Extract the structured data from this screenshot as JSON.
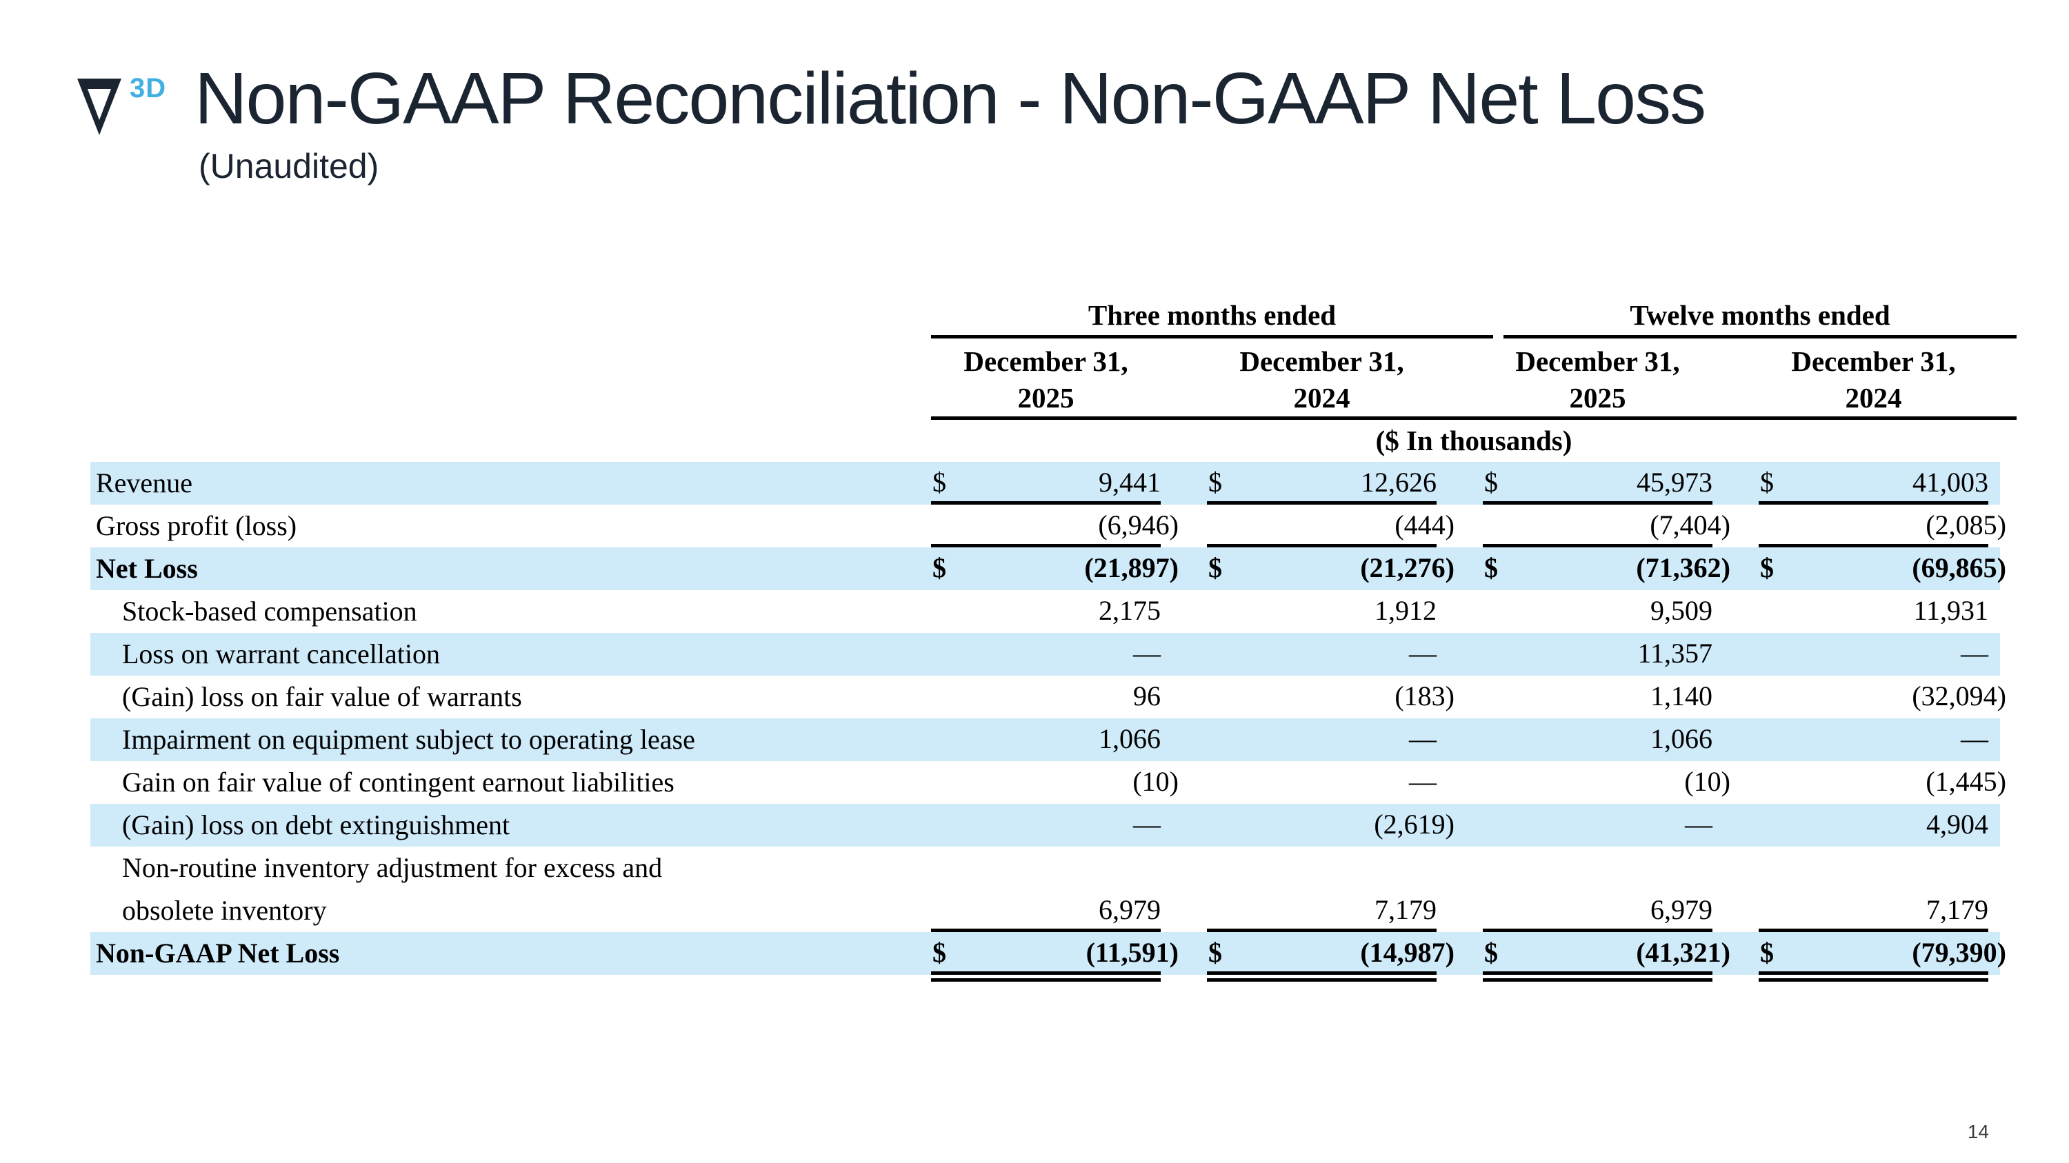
{
  "slide": {
    "logo": {
      "sup": "3D"
    },
    "title": "Non-GAAP Reconciliation - Non-GAAP Net Loss",
    "subtitle": "(Unaudited)",
    "page_number": "14",
    "colors": {
      "title_text": "#1b2531",
      "logo_accent": "#41b0e1",
      "row_highlight": "#cfeaf9",
      "rule": "#000000"
    }
  },
  "table": {
    "group_headers": [
      {
        "label": "Three months ended",
        "span": 2
      },
      {
        "label": "Twelve months ended",
        "span": 2
      }
    ],
    "columns": [
      {
        "line1": "December 31,",
        "line2": "2025"
      },
      {
        "line1": "December 31,",
        "line2": "2024"
      },
      {
        "line1": "December 31,",
        "line2": "2025"
      },
      {
        "line1": "December 31,",
        "line2": "2024"
      }
    ],
    "unit_note": "($ In thousands)",
    "rows": [
      {
        "label": "Revenue",
        "indent": false,
        "bold": false,
        "shaded": true,
        "dollar": true,
        "underline_below": true,
        "double_underline_below": false,
        "two_line": false,
        "values": [
          "9,441",
          "12,626",
          "45,973",
          "41,003"
        ]
      },
      {
        "label": "Gross profit (loss)",
        "indent": false,
        "bold": false,
        "shaded": false,
        "dollar": false,
        "underline_below": true,
        "double_underline_below": false,
        "two_line": false,
        "values": [
          "(6,946)",
          "(444)",
          "(7,404)",
          "(2,085)"
        ]
      },
      {
        "label": "Net Loss",
        "indent": false,
        "bold": true,
        "shaded": true,
        "dollar": true,
        "underline_below": false,
        "double_underline_below": false,
        "two_line": false,
        "values": [
          "(21,897)",
          "(21,276)",
          "(71,362)",
          "(69,865)"
        ]
      },
      {
        "label": "Stock-based compensation",
        "indent": true,
        "bold": false,
        "shaded": false,
        "dollar": false,
        "underline_below": false,
        "double_underline_below": false,
        "two_line": false,
        "values": [
          "2,175",
          "1,912",
          "9,509",
          "11,931"
        ]
      },
      {
        "label": "Loss on warrant cancellation",
        "indent": true,
        "bold": false,
        "shaded": true,
        "dollar": false,
        "underline_below": false,
        "double_underline_below": false,
        "two_line": false,
        "values": [
          "—",
          "—",
          "11,357",
          "—"
        ]
      },
      {
        "label": "(Gain) loss on fair value of warrants",
        "indent": true,
        "bold": false,
        "shaded": false,
        "dollar": false,
        "underline_below": false,
        "double_underline_below": false,
        "two_line": false,
        "values": [
          "96",
          "(183)",
          "1,140",
          "(32,094)"
        ]
      },
      {
        "label": "Impairment on equipment subject to operating lease",
        "indent": true,
        "bold": false,
        "shaded": true,
        "dollar": false,
        "underline_below": false,
        "double_underline_below": false,
        "two_line": false,
        "values": [
          "1,066",
          "—",
          "1,066",
          "—"
        ]
      },
      {
        "label": "Gain on fair value of contingent earnout liabilities",
        "indent": true,
        "bold": false,
        "shaded": false,
        "dollar": false,
        "underline_below": false,
        "double_underline_below": false,
        "two_line": false,
        "values": [
          "(10)",
          "—",
          "(10)",
          "(1,445)"
        ]
      },
      {
        "label": "(Gain) loss on debt extinguishment",
        "indent": true,
        "bold": false,
        "shaded": true,
        "dollar": false,
        "underline_below": false,
        "double_underline_below": false,
        "two_line": false,
        "values": [
          "—",
          "(2,619)",
          "—",
          "4,904"
        ]
      },
      {
        "label": "Non-routine inventory adjustment for excess and\nobsolete inventory",
        "indent": true,
        "bold": false,
        "shaded": false,
        "dollar": false,
        "underline_below": true,
        "double_underline_below": false,
        "two_line": true,
        "values": [
          "6,979",
          "7,179",
          "6,979",
          "7,179"
        ]
      },
      {
        "label": "Non-GAAP Net Loss",
        "indent": false,
        "bold": true,
        "shaded": true,
        "dollar": true,
        "underline_below": false,
        "double_underline_below": true,
        "two_line": false,
        "values": [
          "(11,591)",
          "(14,987)",
          "(41,321)",
          "(79,390)"
        ]
      }
    ]
  }
}
